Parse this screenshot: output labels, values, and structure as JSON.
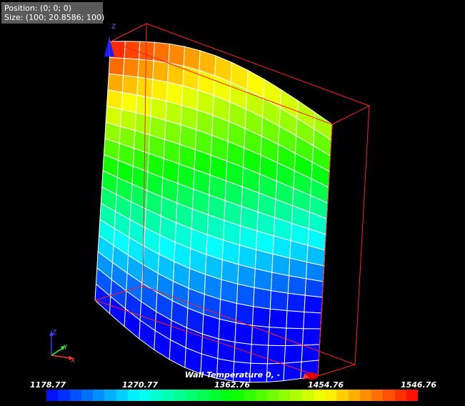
{
  "info": {
    "position_label": "Position: (0; 0; 0)",
    "size_label": "Size: (100; 20.8586; 100)"
  },
  "axes": {
    "z_label": "Z",
    "y_label": "Y",
    "x_label": "X"
  },
  "legend": {
    "title": "Wall Temperature 0, -",
    "ticks": [
      "1178.77",
      "1270.77",
      "1362.76",
      "1454.76",
      "1546.76"
    ],
    "min": 1178.77,
    "max": 1546.76
  },
  "colors": {
    "bounding_box": "#ff2020",
    "mesh_lines": "#ffffff",
    "background": "#000000"
  }
}
